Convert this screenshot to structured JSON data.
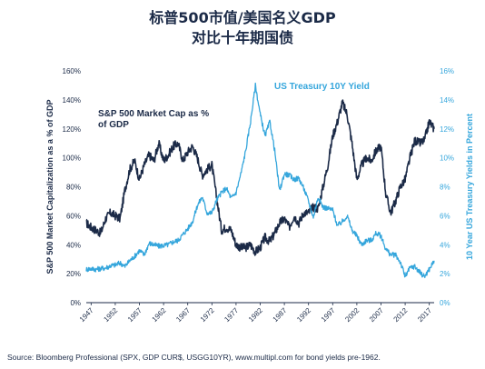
{
  "source": "Source: Bloomberg Professional (SPX, GDP CUR$, USGG10YR), www.multipl.com for bond yields pre-1962.",
  "colors": {
    "left_series": "#1b2a47",
    "right_series": "#35a6dc",
    "axis": "#1b2a47",
    "grid": "#dddddd"
  },
  "chart_data": {
    "type": "line",
    "title": "标普500市值/美国名义GDP",
    "subtitle": "对比十年期国债",
    "ylabel_left": "S&P 500 Market Capitalization as a % of GDP",
    "ylabel_right": "10 Year US Treasury Yields in Percent",
    "ylim_left": [
      0,
      160
    ],
    "ylim_right": [
      0,
      16
    ],
    "xlim": [
      1946,
      2018
    ],
    "x_ticks": [
      "1947",
      "1952",
      "1957",
      "1962",
      "1967",
      "1972",
      "1977",
      "1982",
      "1987",
      "1992",
      "1997",
      "2002",
      "2007",
      "2012",
      "2017"
    ],
    "y_ticks_left": [
      "0%",
      "20%",
      "40%",
      "60%",
      "80%",
      "100%",
      "120%",
      "140%",
      "160%"
    ],
    "y_ticks_right": [
      "0%",
      "2%",
      "4%",
      "6%",
      "8%",
      "10%",
      "12%",
      "14%",
      "16%"
    ],
    "grid": false,
    "legend": "inline labels",
    "series": [
      {
        "name": "S&P 500 Market Cap as % of GDP",
        "axis": "left",
        "x": [
          1946,
          1947,
          1948,
          1949,
          1950,
          1951,
          1952,
          1953,
          1954,
          1955,
          1956,
          1957,
          1958,
          1959,
          1960,
          1961,
          1962,
          1963,
          1964,
          1965,
          1966,
          1967,
          1968,
          1969,
          1970,
          1971,
          1972,
          1973,
          1974,
          1975,
          1976,
          1977,
          1978,
          1979,
          1980,
          1981,
          1982,
          1983,
          1984,
          1985,
          1986,
          1987,
          1988,
          1989,
          1990,
          1991,
          1992,
          1993,
          1994,
          1995,
          1996,
          1997,
          1998,
          1999,
          2000,
          2001,
          2002,
          2003,
          2004,
          2005,
          2006,
          2007,
          2008,
          2009,
          2010,
          2011,
          2012,
          2013,
          2014,
          2015,
          2016,
          2017,
          2018
        ],
        "values": [
          55,
          52,
          50,
          48,
          58,
          62,
          60,
          58,
          78,
          92,
          98,
          85,
          95,
          102,
          98,
          110,
          98,
          102,
          108,
          110,
          98,
          104,
          108,
          100,
          88,
          92,
          95,
          72,
          50,
          52,
          50,
          40,
          38,
          38,
          40,
          35,
          38,
          45,
          42,
          48,
          55,
          58,
          52,
          60,
          55,
          62,
          62,
          66,
          65,
          80,
          95,
          115,
          125,
          138,
          130,
          110,
          85,
          95,
          100,
          98,
          105,
          108,
          75,
          62,
          70,
          80,
          85,
          100,
          112,
          110,
          112,
          125,
          120
        ]
      },
      {
        "name": "US Treasury 10Y Yield",
        "axis": "right",
        "x": [
          1946,
          1947,
          1948,
          1949,
          1950,
          1951,
          1952,
          1953,
          1954,
          1955,
          1956,
          1957,
          1958,
          1959,
          1960,
          1961,
          1962,
          1963,
          1964,
          1965,
          1966,
          1967,
          1968,
          1969,
          1970,
          1971,
          1972,
          1973,
          1974,
          1975,
          1976,
          1977,
          1978,
          1979,
          1980,
          1981,
          1982,
          1983,
          1984,
          1985,
          1986,
          1987,
          1988,
          1989,
          1990,
          1991,
          1992,
          1993,
          1994,
          1995,
          1996,
          1997,
          1998,
          1999,
          2000,
          2001,
          2002,
          2003,
          2004,
          2005,
          2006,
          2007,
          2008,
          2009,
          2010,
          2011,
          2012,
          2013,
          2014,
          2015,
          2016,
          2017,
          2018
        ],
        "values": [
          2.3,
          2.35,
          2.3,
          2.35,
          2.4,
          2.55,
          2.6,
          2.75,
          2.5,
          2.9,
          3.2,
          3.6,
          3.3,
          4.1,
          4.0,
          3.9,
          3.95,
          4.0,
          4.2,
          4.3,
          4.7,
          5.1,
          5.6,
          6.7,
          7.3,
          6.2,
          6.2,
          7.1,
          7.6,
          7.9,
          7.2,
          7.6,
          8.9,
          10.5,
          12.5,
          15.0,
          13.0,
          11.5,
          12.5,
          10.5,
          7.7,
          8.9,
          8.8,
          8.5,
          8.6,
          7.9,
          7.0,
          5.9,
          7.3,
          6.6,
          6.5,
          6.4,
          5.3,
          5.6,
          6.0,
          5.0,
          4.6,
          4.0,
          4.3,
          4.3,
          4.8,
          4.6,
          3.7,
          3.3,
          3.3,
          2.8,
          1.8,
          2.4,
          2.5,
          2.1,
          1.8,
          2.3,
          2.9
        ]
      }
    ]
  }
}
